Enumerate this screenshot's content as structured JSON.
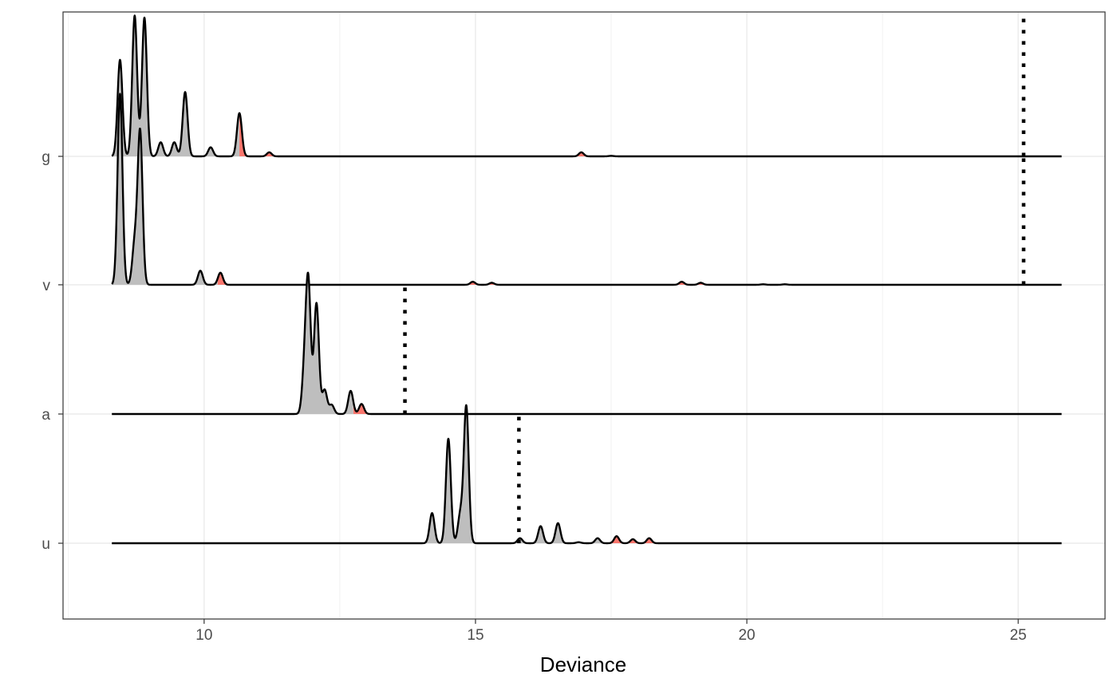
{
  "chart_data": {
    "type": "ridgeline",
    "title": "",
    "xlabel": "Deviance",
    "ylabel": "",
    "xlim": [
      7.4,
      26.6
    ],
    "x_ticks": [
      10,
      15,
      20,
      25
    ],
    "x_tick_labels": [
      "10",
      "15",
      "20",
      "25"
    ],
    "x_range_drawn": [
      8.3,
      25.8
    ],
    "categories": [
      "u",
      "a",
      "v",
      "g"
    ],
    "grid": true,
    "legend": "none",
    "colors": {
      "fill_main": "#bebebe",
      "fill_tail": "#f8766d",
      "line": "#000000",
      "grid": "#ebebeb",
      "panel_border": "#333333"
    },
    "series": [
      {
        "name": "u",
        "threshold": 15.8,
        "tail_fill_from": 17.4,
        "peaks": [
          {
            "x": 14.2,
            "height": 0.3
          },
          {
            "x": 14.5,
            "height": 1.04
          },
          {
            "x": 14.72,
            "height": 0.28
          },
          {
            "x": 14.83,
            "height": 1.36
          },
          {
            "x": 15.82,
            "height": 0.05
          },
          {
            "x": 16.2,
            "height": 0.17
          },
          {
            "x": 16.52,
            "height": 0.2
          },
          {
            "x": 16.9,
            "height": 0.01
          },
          {
            "x": 17.25,
            "height": 0.05
          },
          {
            "x": 17.6,
            "height": 0.07
          },
          {
            "x": 17.9,
            "height": 0.04
          },
          {
            "x": 18.2,
            "height": 0.05
          }
        ]
      },
      {
        "name": "a",
        "threshold": 13.7,
        "tail_fill_from": 12.75,
        "peaks": [
          {
            "x": 11.85,
            "height": 0.4
          },
          {
            "x": 11.92,
            "height": 1.27
          },
          {
            "x": 12.07,
            "height": 1.1
          },
          {
            "x": 12.22,
            "height": 0.24
          },
          {
            "x": 12.35,
            "height": 0.09
          },
          {
            "x": 12.7,
            "height": 0.23
          },
          {
            "x": 12.9,
            "height": 0.1
          }
        ]
      },
      {
        "name": "v",
        "threshold": 25.1,
        "tail_fill_from": 10.25,
        "peaks": [
          {
            "x": 8.45,
            "height": 1.9
          },
          {
            "x": 8.82,
            "height": 1.52
          },
          {
            "x": 8.72,
            "height": 0.4
          },
          {
            "x": 9.93,
            "height": 0.14
          },
          {
            "x": 10.3,
            "height": 0.12
          },
          {
            "x": 14.95,
            "height": 0.03
          },
          {
            "x": 15.3,
            "height": 0.02
          },
          {
            "x": 18.8,
            "height": 0.03
          },
          {
            "x": 19.15,
            "height": 0.02
          },
          {
            "x": 20.3,
            "height": 0.005
          },
          {
            "x": 20.7,
            "height": 0.005
          }
        ]
      },
      {
        "name": "g",
        "threshold": 25.1,
        "tail_fill_from": 10.65,
        "peaks": [
          {
            "x": 8.45,
            "height": 0.96
          },
          {
            "x": 8.72,
            "height": 1.4
          },
          {
            "x": 8.9,
            "height": 1.38
          },
          {
            "x": 9.2,
            "height": 0.14
          },
          {
            "x": 9.45,
            "height": 0.14
          },
          {
            "x": 9.65,
            "height": 0.64
          },
          {
            "x": 10.12,
            "height": 0.09
          },
          {
            "x": 10.65,
            "height": 0.43
          },
          {
            "x": 11.2,
            "height": 0.04
          },
          {
            "x": 16.95,
            "height": 0.04
          },
          {
            "x": 17.5,
            "height": 0.005
          }
        ]
      }
    ]
  }
}
